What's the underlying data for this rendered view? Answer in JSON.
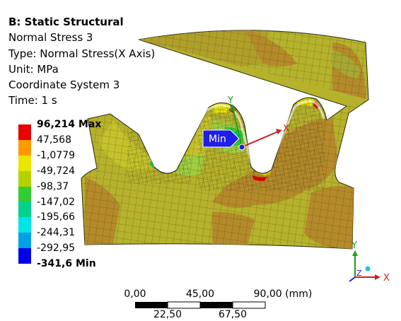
{
  "info": {
    "title": "B: Static Structural",
    "lines": [
      "Normal Stress 3",
      "Type: Normal Stress(X Axis)",
      "Unit: MPa",
      "Coordinate System 3",
      "Time: 1 s"
    ]
  },
  "legend": {
    "labels": [
      "96,214 Max",
      "47,568",
      "-1,0779",
      "-49,724",
      "-98,37",
      "-147,02",
      "-195,66",
      "-244,31",
      "-292,95",
      "-341,6 Min"
    ],
    "colors": [
      "#e60000",
      "#ff9900",
      "#e6e600",
      "#b4d200",
      "#32cd32",
      "#00d28c",
      "#00e6e6",
      "#00a0e6",
      "#0000e6"
    ]
  },
  "probe": {
    "min_label": "Min"
  },
  "local_axes": {
    "x": "X",
    "y": "Y"
  },
  "triad": {
    "x": "X",
    "y": "Y",
    "z": "Z"
  },
  "scale_bar": {
    "top_labels": [
      "0,00",
      "45,00",
      "90,00 (mm)"
    ],
    "bottom_labels": [
      "22,50",
      "67,50"
    ]
  },
  "colors": {
    "mesh_olive": "#a6a830",
    "mesh_brown": "#b58a2a",
    "mesh_yellow_green": "#c6c22c",
    "mesh_green": "#7fc23a",
    "mesh_lines": "#3a3a10",
    "probe_blue": "#1e1ee6",
    "axis_red": "#d21e1e",
    "axis_green": "#1e9e1e",
    "axis_blue": "#1e1ee6"
  }
}
